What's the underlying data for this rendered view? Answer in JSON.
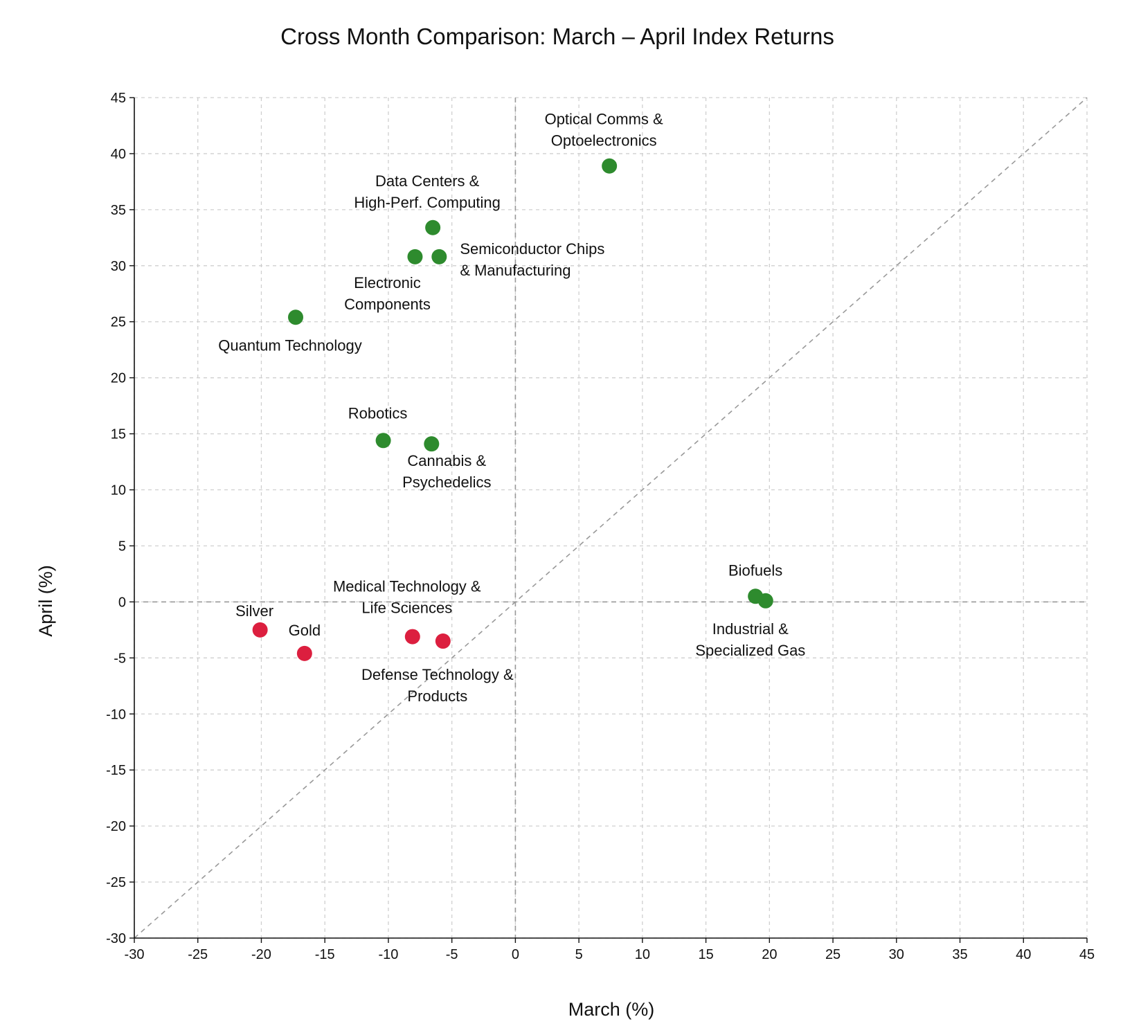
{
  "chart_data": {
    "type": "scatter",
    "title": "Cross Month Comparison: March – April Index Returns",
    "xlabel": "March (%)",
    "ylabel": "April (%)",
    "xlim": [
      -30,
      45
    ],
    "ylim": [
      -30,
      45
    ],
    "xticks": [
      "-30",
      "-25",
      "-20",
      "-15",
      "-10",
      "-5",
      "0",
      "5",
      "10",
      "15",
      "20",
      "25",
      "30",
      "35",
      "40",
      "45"
    ],
    "yticks": [
      "-30",
      "-25",
      "-20",
      "-15",
      "-10",
      "-5",
      "0",
      "5",
      "10",
      "15",
      "20",
      "25",
      "30",
      "35",
      "40",
      "45"
    ],
    "grid": true,
    "reference_lines": [
      "y = x diagonal",
      "x = 0",
      "y = 0"
    ],
    "colors": {
      "positive": "#2e8b2e",
      "negative": "#dc1f3f",
      "reference": "#999999"
    },
    "points": [
      {
        "label": [
          "Optical Comms &",
          "Optoelectronics"
        ],
        "x": 7.4,
        "y": 38.9,
        "color": "#2e8b2e"
      },
      {
        "label": [
          "Data Centers &",
          "High-Perf. Computing"
        ],
        "x": -6.5,
        "y": 33.4,
        "color": "#2e8b2e"
      },
      {
        "label": [
          "Semiconductor Chips",
          "& Manufacturing"
        ],
        "x": -6.0,
        "y": 30.8,
        "color": "#2e8b2e"
      },
      {
        "label": [
          "Electronic",
          "Components"
        ],
        "x": -7.9,
        "y": 30.8,
        "color": "#2e8b2e"
      },
      {
        "label": [
          "Quantum Technology"
        ],
        "x": -17.3,
        "y": 25.4,
        "color": "#2e8b2e"
      },
      {
        "label": [
          "Robotics"
        ],
        "x": -10.4,
        "y": 14.4,
        "color": "#2e8b2e"
      },
      {
        "label": [
          "Cannabis &",
          "Psychedelics"
        ],
        "x": -6.6,
        "y": 14.1,
        "color": "#2e8b2e"
      },
      {
        "label": [
          "Biofuels"
        ],
        "x": 18.9,
        "y": 0.5,
        "color": "#2e8b2e"
      },
      {
        "label": [
          "Industrial &",
          "Specialized Gas"
        ],
        "x": 19.7,
        "y": 0.1,
        "color": "#2e8b2e"
      },
      {
        "label": [
          "Silver"
        ],
        "x": -20.1,
        "y": -2.5,
        "color": "#dc1f3f"
      },
      {
        "label": [
          "Gold"
        ],
        "x": -16.6,
        "y": -4.6,
        "color": "#dc1f3f"
      },
      {
        "label": [
          "Medical Technology &",
          "Life Sciences"
        ],
        "x": -8.1,
        "y": -3.1,
        "color": "#dc1f3f"
      },
      {
        "label": [
          "Defense Technology &",
          "Products"
        ],
        "x": -5.7,
        "y": -3.5,
        "color": "#dc1f3f"
      }
    ]
  }
}
